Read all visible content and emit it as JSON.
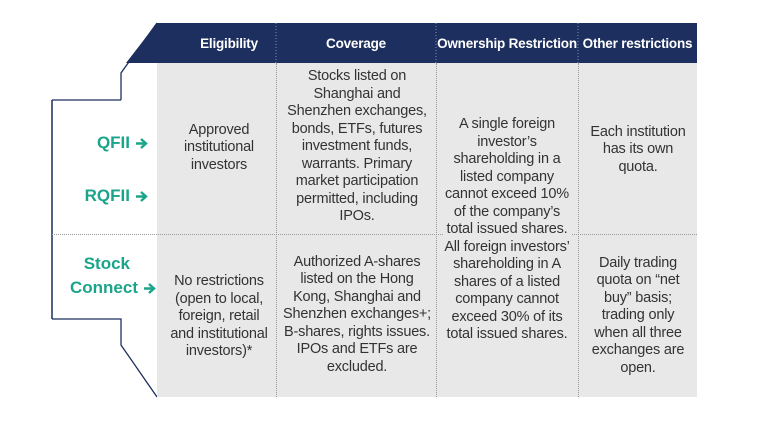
{
  "header": {
    "columns": [
      "Eligibility",
      "Coverage",
      "Ownership Restriction",
      "Other restrictions"
    ]
  },
  "rows": [
    {
      "labels": [
        "QFII",
        "RQFII"
      ],
      "eligibility": "Approved institutional investors",
      "coverage": "Stocks listed on Shanghai and Shenzhen exchanges, bonds, ETFs, futures investment funds, warrants. Primary market participation permitted, including IPOs.",
      "other": "Each institution has its own quota."
    },
    {
      "labels": [
        "Stock",
        "Connect"
      ],
      "eligibility": "No restrictions (open to local, foreign, retail and institutional investors)*",
      "coverage": "Authorized A-shares listed on the Hong Kong, Shanghai and Shenzhen exchanges+; B-shares, rights issues. IPOs and ETFs are excluded.",
      "other": "Daily trading quota on “net buy” basis; trading only when all three exchanges are open."
    }
  ],
  "ownership_restriction": "A single foreign investor’s shareholding in a listed company cannot exceed 10% of the company’s total issued shares. All foreign investors’ shareholding in A shares of a listed company cannot exceed 30% of its total issued shares.",
  "icons": {
    "arrow": "arrow-right-icon"
  },
  "colors": {
    "header": "#1c2f5e",
    "accent": "#1aa58a",
    "body": "#e8e8e8"
  }
}
